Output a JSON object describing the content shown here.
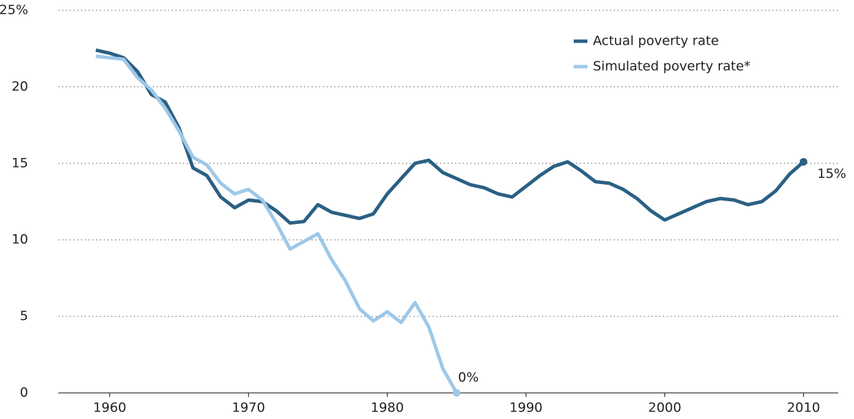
{
  "chart_data": {
    "type": "line",
    "x": [
      1959,
      1960,
      1961,
      1962,
      1963,
      1964,
      1965,
      1966,
      1967,
      1968,
      1969,
      1970,
      1971,
      1972,
      1973,
      1974,
      1975,
      1976,
      1977,
      1978,
      1979,
      1980,
      1981,
      1982,
      1983,
      1984,
      1985,
      1986,
      1987,
      1988,
      1989,
      1990,
      1991,
      1992,
      1993,
      1994,
      1995,
      1996,
      1997,
      1998,
      1999,
      2000,
      2001,
      2002,
      2003,
      2004,
      2005,
      2006,
      2007,
      2008,
      2009,
      2010
    ],
    "series": [
      {
        "name": "Actual poverty rate",
        "color": "#2a6083",
        "values": [
          22.4,
          22.2,
          21.9,
          21.0,
          19.5,
          19.0,
          17.3,
          14.7,
          14.2,
          12.8,
          12.1,
          12.6,
          12.5,
          11.9,
          11.1,
          11.2,
          12.3,
          11.8,
          11.6,
          11.4,
          11.7,
          13.0,
          14.0,
          15.0,
          15.2,
          14.4,
          14.0,
          13.6,
          13.4,
          13.0,
          12.8,
          13.5,
          14.2,
          14.8,
          15.1,
          14.5,
          13.8,
          13.7,
          13.3,
          12.7,
          11.9,
          11.3,
          11.7,
          12.1,
          12.5,
          12.7,
          12.6,
          12.3,
          12.5,
          13.2,
          14.3,
          15.1
        ],
        "value_labels": [
          null,
          null,
          null,
          null,
          null,
          null,
          null,
          null,
          null,
          null,
          null,
          null,
          null,
          null,
          null,
          null,
          null,
          null,
          null,
          null,
          null,
          null,
          null,
          null,
          null,
          null,
          null,
          null,
          null,
          null,
          null,
          null,
          null,
          null,
          null,
          null,
          null,
          null,
          null,
          null,
          null,
          null,
          null,
          null,
          null,
          null,
          null,
          null,
          null,
          null,
          null,
          "15%"
        ]
      },
      {
        "name": "Simulated poverty rate*",
        "color": "#9ec8e8",
        "values": [
          22.0,
          21.9,
          21.8,
          20.6,
          19.8,
          18.6,
          17.1,
          15.4,
          14.9,
          13.7,
          13.0,
          13.3,
          12.6,
          11.1,
          9.4,
          9.9,
          10.4,
          8.7,
          7.3,
          5.5,
          4.7,
          5.3,
          4.6,
          5.9,
          4.3,
          1.6,
          0,
          null,
          null,
          null,
          null,
          null,
          null,
          null,
          null,
          null,
          null,
          null,
          null,
          null,
          null,
          null,
          null,
          null,
          null,
          null,
          null,
          null,
          null,
          null,
          null,
          null
        ],
        "value_labels": [
          null,
          null,
          null,
          null,
          null,
          null,
          null,
          null,
          null,
          null,
          null,
          null,
          null,
          null,
          null,
          null,
          null,
          null,
          null,
          null,
          null,
          null,
          null,
          null,
          null,
          null,
          "0%",
          null,
          null,
          null,
          null,
          null,
          null,
          null,
          null,
          null,
          null,
          null,
          null,
          null,
          null,
          null,
          null,
          null,
          null,
          null,
          null,
          null,
          null,
          null,
          null,
          null
        ]
      }
    ],
    "xlim": [
      1956.3,
      2012.5
    ],
    "xticks": [
      1960,
      1970,
      1980,
      1990,
      2000,
      2010
    ],
    "ylim": [
      0,
      25
    ],
    "yticks": [
      0,
      5,
      10,
      15,
      20,
      {
        "value": 25,
        "label": "25%"
      }
    ],
    "grid": true
  }
}
